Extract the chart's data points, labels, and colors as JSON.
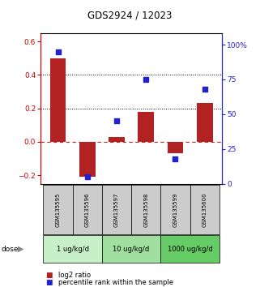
{
  "title": "GDS2924 / 12023",
  "samples": [
    "GSM135595",
    "GSM135596",
    "GSM135597",
    "GSM135598",
    "GSM135599",
    "GSM135600"
  ],
  "log2_ratio": [
    0.5,
    -0.21,
    0.03,
    0.18,
    -0.07,
    0.23
  ],
  "percentile_rank": [
    95,
    5,
    45,
    75,
    18,
    68
  ],
  "dose_groups": [
    {
      "label": "1 ug/kg/d",
      "samples": [
        0,
        1
      ],
      "color": "#c8f0c8"
    },
    {
      "label": "10 ug/kg/d",
      "samples": [
        2,
        3
      ],
      "color": "#a0dfa0"
    },
    {
      "label": "1000 ug/kg/d",
      "samples": [
        4,
        5
      ],
      "color": "#66cc66"
    }
  ],
  "bar_color": "#b22222",
  "dot_color": "#2222cc",
  "left_ylim": [
    -0.25,
    0.65
  ],
  "right_ylim": [
    0,
    108.333
  ],
  "left_yticks": [
    -0.2,
    0.0,
    0.2,
    0.4,
    0.6
  ],
  "right_yticks": [
    0,
    25,
    50,
    75,
    100
  ],
  "right_yticklabels": [
    "0",
    "25",
    "50",
    "75",
    "100%"
  ],
  "dotted_lines": [
    0.2,
    0.4
  ],
  "dashed_line": 0.0,
  "sample_box_color": "#cccccc",
  "bg_color": "#ffffff"
}
